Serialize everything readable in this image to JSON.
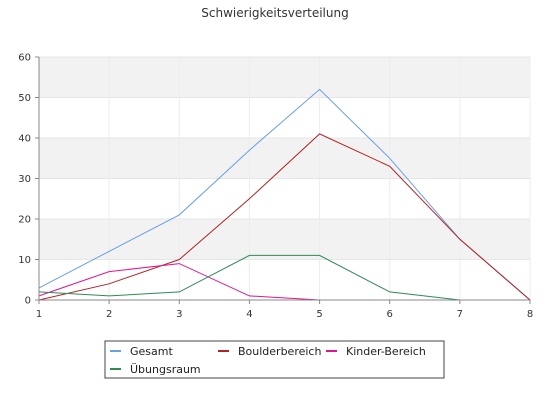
{
  "chart_data": {
    "type": "line",
    "title": "Schwierigkeitsverteilung",
    "xlabel": "",
    "ylabel": "",
    "x": [
      1,
      2,
      3,
      4,
      5,
      6,
      7,
      8
    ],
    "xlim": [
      1,
      8
    ],
    "ylim": [
      0,
      60
    ],
    "yticks": [
      0,
      10,
      20,
      30,
      40,
      50,
      60
    ],
    "xticks": [
      1,
      2,
      3,
      4,
      5,
      6,
      7,
      8
    ],
    "grid": "horizontal bands",
    "legend_position": "bottom",
    "series": [
      {
        "name": "Gesamt",
        "color": "#6a9fe0",
        "x": [
          1,
          2,
          3,
          4,
          5,
          6,
          7,
          8
        ],
        "values": [
          3,
          12,
          21,
          37,
          52,
          35,
          15,
          0
        ]
      },
      {
        "name": "Boulderbereich",
        "color": "#b22222",
        "x": [
          1,
          2,
          3,
          4,
          5,
          6,
          7,
          8
        ],
        "values": [
          0,
          4,
          10,
          25,
          41,
          33,
          15,
          0
        ]
      },
      {
        "name": "Kinder-Bereich",
        "color": "#e0158b",
        "x": [
          1,
          2,
          3,
          4,
          5
        ],
        "values": [
          1,
          7,
          9,
          1,
          0
        ]
      },
      {
        "name": "Übungsraum",
        "color": "#2e8b57",
        "x": [
          1,
          2,
          3,
          4,
          5,
          6,
          7
        ],
        "values": [
          2,
          1,
          2,
          11,
          11,
          2,
          0
        ]
      }
    ]
  }
}
